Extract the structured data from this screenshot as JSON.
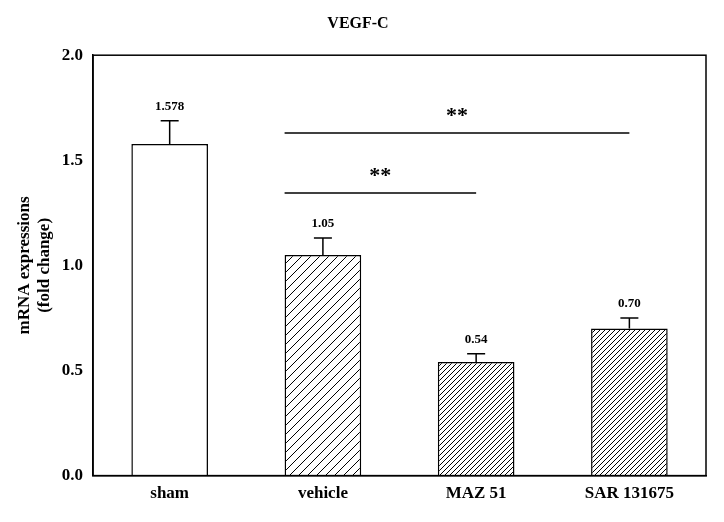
{
  "chart_data": {
    "type": "bar",
    "title": "VEGF-C",
    "y_label": [
      "mRNA expressions",
      "(fold change)"
    ],
    "categories": [
      "sham",
      "vehicle",
      "MAZ 51",
      "SAR 131675"
    ],
    "values": [
      1.578,
      1.05,
      0.54,
      0.7
    ],
    "value_labels": [
      "1.578",
      "1.05",
      "0.54",
      "0.70"
    ],
    "errors": [
      0.11,
      0.08,
      0.04,
      0.05
    ],
    "color": "#000000",
    "ylim": [
      0,
      2
    ],
    "yticks": [
      {
        "value": 0,
        "label": "0.0"
      },
      {
        "value": 0.5,
        "label": "0.5"
      },
      {
        "value": 1,
        "label": "1.0"
      },
      {
        "value": 1.5,
        "label": "1.5"
      },
      {
        "value": 2,
        "label": "2.0"
      }
    ],
    "grid": false,
    "data_labels": true,
    "significance": [
      {
        "from": "vehicle",
        "to": "MAZ 51",
        "label": "**"
      },
      {
        "from": "vehicle",
        "to": "SAR 131675",
        "label": "**"
      }
    ]
  }
}
